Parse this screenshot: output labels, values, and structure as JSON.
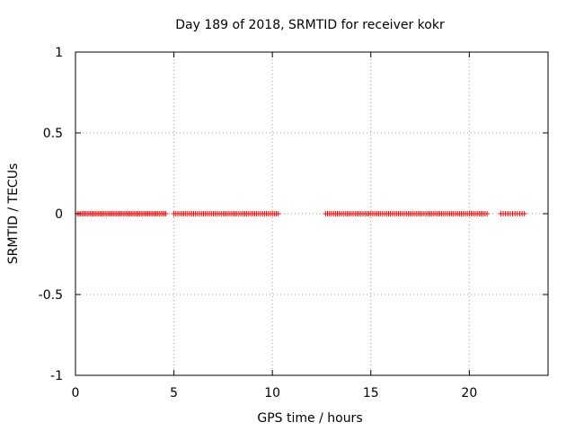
{
  "chart_data": {
    "type": "scatter",
    "title": "Day 189 of 2018, SRMTID for receiver kokr",
    "xlabel": "GPS time / hours",
    "ylabel": "SRMTID / TECUs",
    "xlim": [
      0,
      24
    ],
    "ylim": [
      -1,
      1
    ],
    "xticks": [
      0,
      5,
      10,
      15,
      20
    ],
    "xtick_labels": [
      "0",
      "5",
      "10",
      "15",
      "20"
    ],
    "yticks": [
      -1,
      -0.5,
      0,
      0.5,
      1
    ],
    "ytick_labels": [
      "-1",
      "-0.5",
      "0",
      "0.5",
      "1"
    ],
    "grid": true,
    "marker": "+",
    "marker_color": "#ff0000",
    "series": [
      {
        "name": "SRMTID",
        "segments": [
          {
            "x_start": 0.1,
            "x_end": 4.6,
            "step": 0.083,
            "y": 0
          },
          {
            "x_start": 5.0,
            "x_end": 10.3,
            "step": 0.1,
            "y": 0
          },
          {
            "x_start": 12.7,
            "x_end": 20.9,
            "step": 0.1,
            "y": 0
          },
          {
            "x_start": 21.6,
            "x_end": 22.8,
            "step": 0.12,
            "y": 0
          }
        ]
      }
    ]
  }
}
